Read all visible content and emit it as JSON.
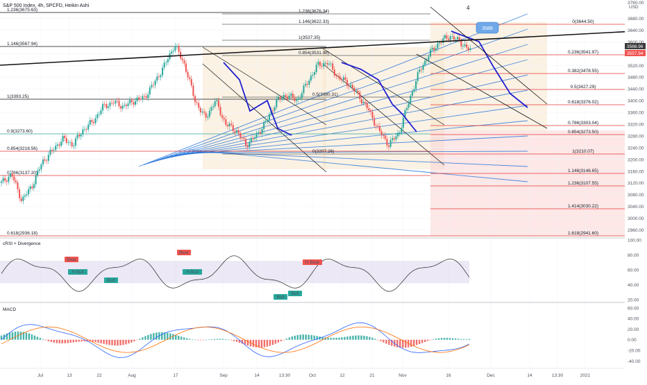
{
  "header": {
    "title": "S&P 500 Index, 4h, SPCFD, Heikin Ashi"
  },
  "main_axis": {
    "currency": "USD",
    "top_label": "3760.00",
    "ticks": [
      "3680.00",
      "3640.00",
      "3600.00",
      "3560.00",
      "3520.00",
      "3480.00",
      "3440.00",
      "3400.00",
      "3360.00",
      "3320.00",
      "3280.00",
      "3240.00",
      "3200.00",
      "3160.00",
      "3120.00",
      "3080.00",
      "3040.00",
      "3000.00",
      "2960.00"
    ],
    "price_tags": [
      {
        "label": "3566.96",
        "color": "#3a3a3a"
      },
      {
        "label": "3557.94",
        "color": "#ef5350"
      }
    ]
  },
  "colors": {
    "fib_red": "#e53935",
    "fib_teal": "#26a69a",
    "channel_blue": "#1e6fd9",
    "path_blue": "#1f1fd0",
    "bull": "#26a69a",
    "bear": "#ef5350",
    "zone_fill": "#f7e2c4",
    "red_zone": "#fbd3d3"
  },
  "left_fib": [
    {
      "label": "1.236(3675.63)",
      "color": "black"
    },
    {
      "label": "1.146(3567.94)",
      "color": "black"
    },
    {
      "label": "1(3393.25)",
      "color": "black"
    },
    {
      "label": "0.9(3273.60)",
      "color": "teal"
    },
    {
      "label": "0.854(3218.56)",
      "color": "red"
    },
    {
      "label": "0.786(3137.20)",
      "color": "red"
    },
    {
      "label": "0.618(2936.18)",
      "color": "red"
    }
  ],
  "mid_fib": [
    {
      "label": "1.236(3676.34)"
    },
    {
      "label": "1.146(3622.33)"
    },
    {
      "label": "1(3537.35)"
    },
    {
      "label": "0.854(3531.98)"
    },
    {
      "label": "0.5(3380.31)"
    },
    {
      "label": "0(3207.26)"
    }
  ],
  "right_fib": [
    {
      "label": "0(3644.50)"
    },
    {
      "label": "0.236(3541.97)"
    },
    {
      "label": "0.382(3478.55)"
    },
    {
      "label": "0.5(3427.29)"
    },
    {
      "label": "0.618(3376.02)"
    },
    {
      "label": "0.786(3303.04)"
    },
    {
      "label": "0.854(3273.50)"
    },
    {
      "label": "1(3210.07)"
    },
    {
      "label": "1.146(3146.65)"
    },
    {
      "label": "1.236(3107.55)"
    },
    {
      "label": "1.414(3030.22)"
    },
    {
      "label": "1.618(2941.60)"
    }
  ],
  "annotations": {
    "wave_label": "4",
    "callout": "3588"
  },
  "crsi": {
    "title": "cRSI + Divergence",
    "ticks": [
      "100.00",
      "80.00",
      "60.00",
      "40.00",
      "20.00"
    ],
    "labels": [
      "Bear",
      "Bear",
      "H Bull",
      "Bull",
      "H Bull",
      "H Bear",
      "Bull",
      "Bull"
    ]
  },
  "macd": {
    "title": "MACD",
    "ticks": [
      "60.00",
      "40.00",
      "20.00",
      "0.00",
      "-20.00",
      "-40.00"
    ]
  },
  "x_axis": {
    "labels": [
      "Jul",
      "13",
      "22",
      "Aug",
      "17",
      "Sep",
      "14",
      "13:30",
      "Oct",
      "12",
      "21",
      "Nov",
      "16",
      "Dec",
      "14",
      "13:30",
      "2021"
    ]
  },
  "chart_data": {
    "type": "candlestick",
    "title": "S&P 500 Index, 4h, SPCFD, Heikin Ashi",
    "ylim": [
      2940,
      3760
    ],
    "y_ticks": [
      3680,
      3640,
      3600,
      3560,
      3520,
      3480,
      3440,
      3400,
      3360,
      3320,
      3280,
      3240,
      3200,
      3160,
      3120,
      3080,
      3040,
      3000,
      2960
    ],
    "x_labels": [
      "Jul",
      "13",
      "22",
      "Aug",
      "17",
      "Sep",
      "14",
      "13:30",
      "Oct",
      "12",
      "21",
      "Nov",
      "16",
      "Dec",
      "14",
      "13:30",
      "2021"
    ],
    "price_path": [
      3120,
      3150,
      3060,
      3110,
      3190,
      3230,
      3270,
      3250,
      3300,
      3330,
      3380,
      3395,
      3380,
      3400,
      3410,
      3460,
      3520,
      3590,
      3520,
      3400,
      3340,
      3400,
      3320,
      3300,
      3250,
      3280,
      3330,
      3400,
      3420,
      3400,
      3460,
      3520,
      3530,
      3480,
      3460,
      3420,
      3370,
      3300,
      3250,
      3290,
      3400,
      3500,
      3560,
      3600,
      3620,
      3600,
      3570
    ],
    "projection_path": [
      3640,
      3600,
      3550,
      3500,
      3420,
      3380,
      3340,
      3360
    ],
    "last_close": 3566.96,
    "ha_close": 3557.94,
    "crsi_range": [
      20,
      100
    ],
    "macd_range": [
      -50,
      65
    ]
  }
}
